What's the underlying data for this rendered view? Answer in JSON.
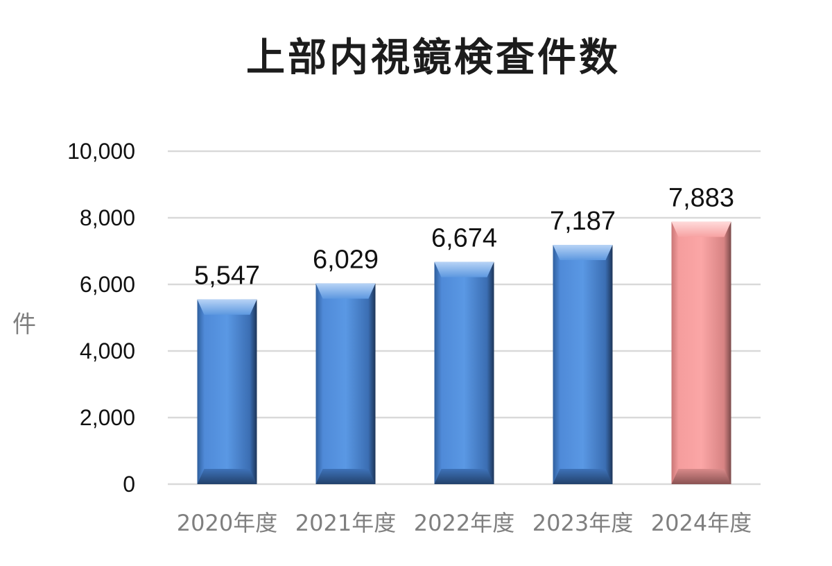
{
  "chart_data": {
    "type": "bar",
    "title": "上部内視鏡検査件数",
    "ylabel": "件",
    "xlabel": "",
    "categories": [
      "2020年度",
      "2021年度",
      "2022年度",
      "2023年度",
      "2024年度"
    ],
    "values": [
      5547,
      6029,
      6674,
      7187,
      7883
    ],
    "value_labels": [
      "5,547",
      "6,029",
      "6,674",
      "7,187",
      "7,883"
    ],
    "ylim": [
      0,
      10000
    ],
    "yticks": [
      0,
      2000,
      4000,
      6000,
      8000,
      10000
    ],
    "ytick_labels": [
      "0",
      "2,000",
      "4,000",
      "6,000",
      "8,000",
      "10,000"
    ],
    "grid": true,
    "legend": "none",
    "colors": {
      "default_bar": "#4a86d9",
      "highlight_bar": "#f59b9b",
      "highlight_index": 4,
      "gridline": "#d9d9d9"
    }
  }
}
